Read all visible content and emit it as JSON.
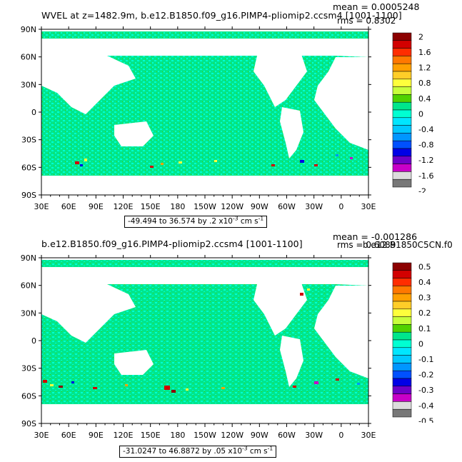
{
  "top": {
    "title": "WVEL at z=1482.9m, b.e12.B1850.f09_g16.PIMP4-pliomip2.ccsm4 [1001-1100]",
    "mean": "mean = 0.0005248",
    "rms": "rms = 0.8302",
    "range_text": "-49.494 to 36.574 by .2 x10",
    "range_unit": "cm s",
    "colorbar": {
      "labels": [
        "2",
        "1.6",
        "1.2",
        "0.8",
        "0.4",
        "0",
        "-0.4",
        "-0.8",
        "-1.2",
        "-1.6",
        "-2"
      ],
      "colors": [
        "#8c0000",
        "#d20000",
        "#ff2d00",
        "#ff7800",
        "#ffa000",
        "#ffcd28",
        "#ffff3c",
        "#c8ff3c",
        "#50d200",
        "#00e68c",
        "#00ffd2",
        "#00e6ff",
        "#00c8ff",
        "#0096ff",
        "#0050ff",
        "#0000e6",
        "#6e00c8",
        "#c800c8",
        "#dcdcdc",
        "#787878"
      ]
    }
  },
  "bottom": {
    "title": "b.e12.B1850.f09_g16.PIMP4-pliomip2.ccsm4 [1001-1100]",
    "mean": "mean = -0.001286",
    "rms": "rms = 0.6089",
    "overlap_text": "b.e12.B1850C5CN.f0",
    "range_text": "-31.0247 to 46.8872 by .05 x10",
    "range_unit": "cm s",
    "colorbar": {
      "labels": [
        "0.5",
        "0.4",
        "0.3",
        "0.2",
        "0.1",
        "0",
        "-0.1",
        "-0.2",
        "-0.3",
        "-0.4",
        "-0.5"
      ],
      "colors": [
        "#8c0000",
        "#d20000",
        "#ff2d00",
        "#ff7800",
        "#ffa000",
        "#ffcd28",
        "#ffff3c",
        "#c8ff3c",
        "#50d200",
        "#00e68c",
        "#00ffd2",
        "#00e6ff",
        "#00c8ff",
        "#0096ff",
        "#0050ff",
        "#0000e6",
        "#6e00c8",
        "#c800c8",
        "#dcdcdc",
        "#787878"
      ]
    }
  },
  "axes": {
    "lat_labels": [
      "90N",
      "60N",
      "30N",
      "0",
      "30S",
      "60S",
      "90S"
    ],
    "lon_labels": [
      "30E",
      "60E",
      "90E",
      "120E",
      "150E",
      "180",
      "150W",
      "120W",
      "90W",
      "60W",
      "30W",
      "0",
      "30E"
    ]
  },
  "colors": {
    "ocean_base": "#00e68c",
    "ocean_alt": "#00ffd2",
    "land": "#ffffff"
  }
}
